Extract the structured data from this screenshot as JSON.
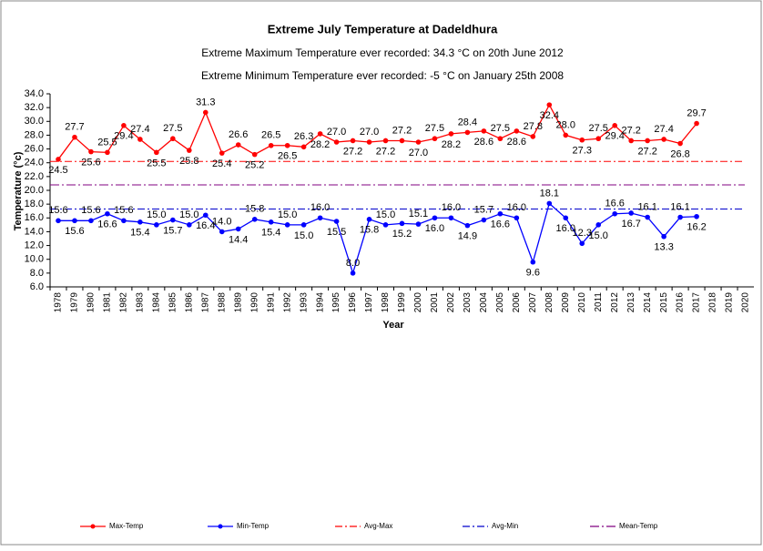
{
  "chart_data": {
    "type": "line",
    "title": "Extreme July Temperature at Dadeldhura",
    "subtitle": "Extreme Maximum Temperature ever recorded: 34.3 °C on 20th June 2012",
    "subtitle2": "Extreme Minimum Temperature ever recorded: -5 °C on January 25th 2008",
    "x_label": "Year",
    "y_label": "Temperature (°c)",
    "categories": [
      "1978",
      "1979",
      "1980",
      "1981",
      "1982",
      "1983",
      "1984",
      "1985",
      "1986",
      "1987",
      "1988",
      "1989",
      "1990",
      "1991",
      "1992",
      "1993",
      "1994",
      "1995",
      "1996",
      "1997",
      "1998",
      "1999",
      "2000",
      "2001",
      "2002",
      "2003",
      "2004",
      "2005",
      "2006",
      "2007",
      "2008",
      "2009",
      "2010",
      "2011",
      "2012",
      "2013",
      "2014",
      "2015",
      "2016",
      "2017",
      "2018",
      "2019",
      "2020"
    ],
    "series": [
      {
        "name": "Max-Temp",
        "color": "#ff0000",
        "values": [
          24.5,
          27.7,
          25.6,
          25.5,
          29.4,
          27.4,
          25.5,
          27.5,
          25.8,
          31.3,
          25.4,
          26.6,
          25.2,
          26.5,
          26.5,
          26.3,
          28.2,
          27.0,
          27.2,
          27.0,
          27.2,
          27.2,
          27.0,
          27.5,
          28.2,
          28.4,
          28.6,
          27.5,
          28.6,
          27.8,
          32.4,
          28.0,
          27.3,
          27.5,
          29.4,
          27.2,
          27.2,
          27.4,
          26.8,
          29.7,
          null,
          null,
          null
        ],
        "value_labels": [
          "24.5",
          "27.7",
          "25.6",
          "25.5",
          "29.4",
          "27.4",
          "25.5",
          "27.5",
          "25.8",
          "31.3",
          "25.4",
          "26.6",
          "25.2",
          "26.5",
          "26.5",
          "26.3",
          "28.2",
          "27.0",
          "27.2",
          "27.0",
          "27.2",
          "27.2",
          "27.0",
          "27.5",
          "28.2",
          "28.4",
          "28.6",
          "27.5",
          "28.6",
          "27.8",
          "32.4",
          "28.0",
          "27.3",
          "27.5",
          "29.4",
          "27.2",
          "27.2",
          "27.4",
          "26.8",
          "29.7",
          null,
          null,
          null
        ]
      },
      {
        "name": "Min-Temp",
        "color": "#0000ff",
        "values": [
          15.6,
          15.6,
          15.6,
          16.6,
          15.6,
          15.4,
          15.0,
          15.7,
          15.0,
          16.4,
          14.0,
          14.4,
          15.8,
          15.4,
          15.0,
          15.0,
          16.0,
          15.5,
          8.0,
          15.8,
          15.0,
          15.2,
          15.1,
          16.0,
          16.0,
          14.9,
          15.7,
          16.6,
          16.0,
          9.6,
          18.1,
          16.0,
          12.3,
          15.0,
          16.6,
          16.7,
          16.1,
          13.3,
          16.1,
          16.2,
          null,
          null,
          null
        ],
        "value_labels": [
          "15.6",
          "15.6",
          "15.6",
          "16.6",
          "15.6",
          "15.4",
          "15.0",
          "15.7",
          "15.0",
          "16.4",
          "14.0",
          "14.4",
          "15.8",
          "15.4",
          "15.0",
          "15.0",
          "16.0",
          "15.5",
          "8.0",
          "15.8",
          "15.0",
          "15.2",
          "15.1",
          "16.0",
          "16.0",
          "14.9",
          "15.7",
          "16.6",
          "16.0",
          "9.6",
          "18.1",
          "16.0",
          "12.3",
          "15.0",
          "16.6",
          "16.7",
          "16.1",
          "13.3",
          "16.1",
          "16.2",
          null,
          null,
          null
        ]
      }
    ],
    "reference_lines": [
      {
        "name": "Avg-Max",
        "color": "#ff0000",
        "value": 24.2
      },
      {
        "name": "Avg-Min",
        "color": "#0000cc",
        "value": 17.3
      },
      {
        "name": "Mean-Temp",
        "color": "#800080",
        "value": 20.8
      }
    ],
    "ylim": [
      6,
      34
    ],
    "yticks": [
      {
        "value": 6,
        "label": "6.0"
      },
      {
        "value": 8,
        "label": "8.0"
      },
      {
        "value": 10,
        "label": "10.0"
      },
      {
        "value": 12,
        "label": "12.0"
      },
      {
        "value": 14,
        "label": "14.0"
      },
      {
        "value": 16,
        "label": "16.0"
      },
      {
        "value": 18,
        "label": "18.0"
      },
      {
        "value": 20,
        "label": "20.0"
      },
      {
        "value": 22,
        "label": "22.0"
      },
      {
        "value": 24,
        "label": "24.0"
      },
      {
        "value": 26,
        "label": "26.0"
      },
      {
        "value": 28,
        "label": "28.0"
      },
      {
        "value": 30,
        "label": "30.0"
      },
      {
        "value": 32,
        "label": "32.0"
      },
      {
        "value": 34,
        "label": "34.0"
      }
    ],
    "legend": "bottom"
  }
}
